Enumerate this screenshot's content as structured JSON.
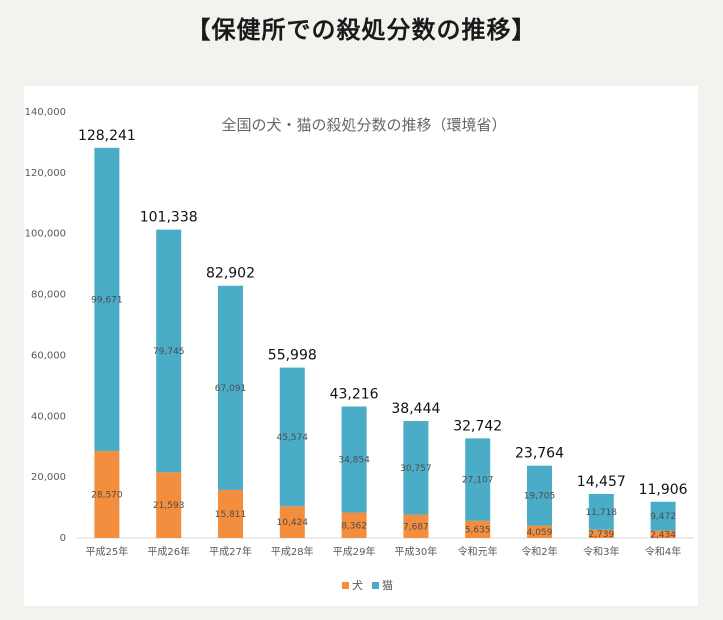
{
  "heading": "【保健所での殺処分数の推移】",
  "chart_data": {
    "type": "bar",
    "stacked": true,
    "title": "全国の犬・猫の殺処分数の推移（環境省）",
    "categories": [
      "平成25年",
      "平成26年",
      "平成27年",
      "平成28年",
      "平成29年",
      "平成30年",
      "令和元年",
      "令和2年",
      "令和3年",
      "令和4年"
    ],
    "series": [
      {
        "name": "犬",
        "color": "#f28e3d",
        "values": [
          28570,
          21593,
          15811,
          10424,
          8362,
          7687,
          5635,
          4059,
          2739,
          2434
        ]
      },
      {
        "name": "猫",
        "color": "#4aacc6",
        "values": [
          99671,
          79745,
          67091,
          45574,
          34854,
          30757,
          27107,
          19705,
          11718,
          9472
        ]
      }
    ],
    "totals": [
      128241,
      101338,
      82902,
      55998,
      43216,
      38444,
      32742,
      23764,
      14457,
      11906
    ],
    "ylim": [
      0,
      140000
    ],
    "yticks": [
      0,
      20000,
      40000,
      60000,
      80000,
      100000,
      120000,
      140000
    ],
    "grid": false,
    "legend": "bottom"
  }
}
